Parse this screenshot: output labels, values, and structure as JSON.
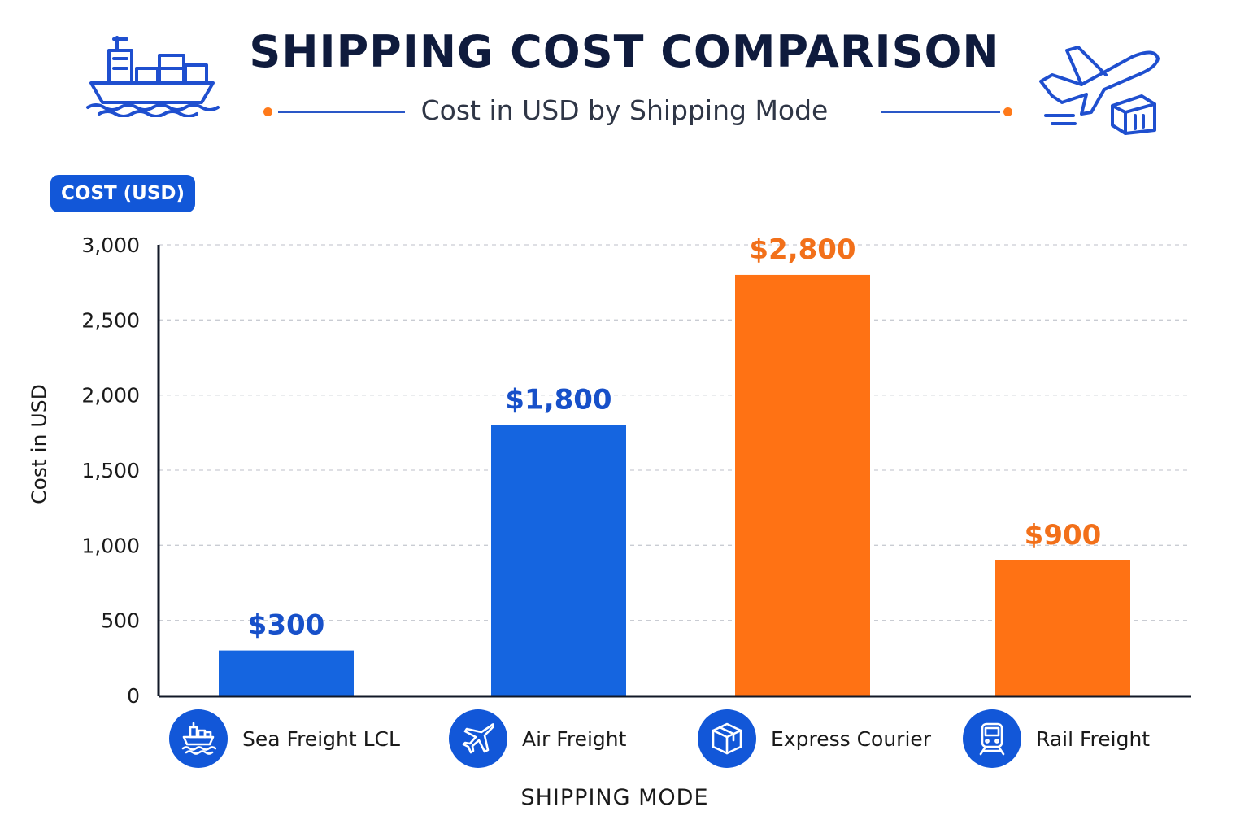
{
  "header": {
    "title": "SHIPPING COST COMPARISON",
    "subtitle": "Cost in USD by Shipping Mode"
  },
  "badge": {
    "label": "COST (USD)"
  },
  "colors": {
    "blue": "#1565e0",
    "orange": "#ff7214",
    "navy": "#0f1b3d",
    "badge": "#1257d8",
    "accent_dot": "#ff7a1a"
  },
  "icons": {
    "top_left": "cargo-ship-icon",
    "top_right": "airplane-package-icon",
    "categories": [
      "cargo-ship-icon",
      "airplane-icon",
      "package-box-icon",
      "train-icon"
    ]
  },
  "chart_data": {
    "type": "bar",
    "title": "SHIPPING COST COMPARISON",
    "subtitle": "Cost in USD by Shipping Mode",
    "xlabel": "SHIPPING MODE",
    "ylabel": "Cost in USD",
    "categories": [
      "Sea Freight LCL",
      "Air Freight",
      "Express Courier",
      "Rail Freight"
    ],
    "values": [
      300,
      1800,
      2800,
      900
    ],
    "value_labels": [
      "$300",
      "$1,800",
      "$2,800",
      "$900"
    ],
    "bar_colors": [
      "#1565e0",
      "#1565e0",
      "#ff7214",
      "#ff7214"
    ],
    "ylim": [
      0,
      3000
    ],
    "yticks": [
      0,
      500,
      1000,
      1500,
      2000,
      2500,
      3000
    ],
    "ytick_labels": [
      "0",
      "500",
      "1,000",
      "1,500",
      "2,000",
      "2,500",
      "3,000"
    ],
    "grid": true,
    "legend": "none"
  }
}
